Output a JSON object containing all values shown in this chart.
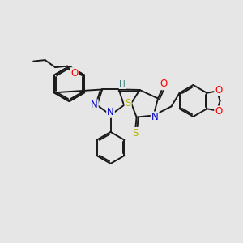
{
  "bg_color": "#e6e6e6",
  "line_color": "#1a1a1a",
  "bond_lw": 1.4,
  "dbo": 0.06,
  "atom_colors": {
    "O": "#ff0000",
    "N": "#0000cc",
    "S": "#b8b800",
    "H": "#3a8080",
    "C": "#1a1a1a"
  },
  "fs": 8.5
}
